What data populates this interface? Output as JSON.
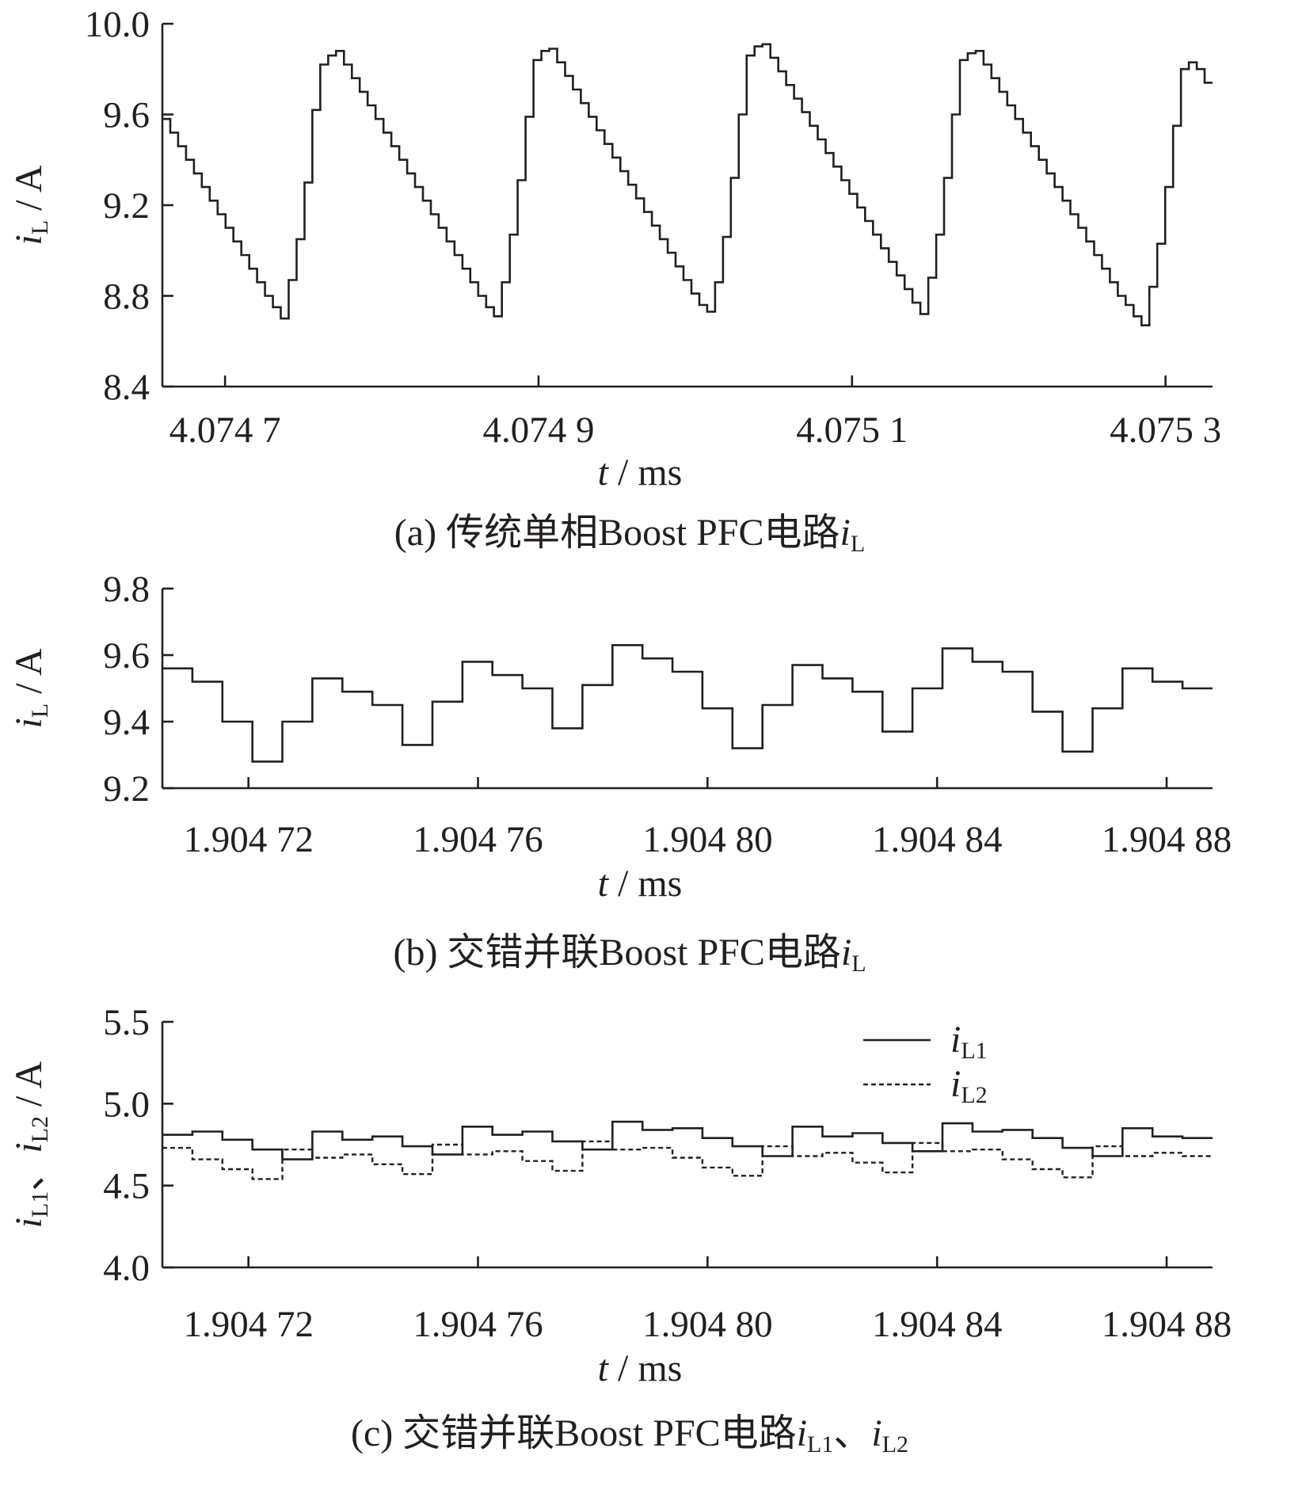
{
  "chart_data": [
    {
      "type": "line",
      "caption_prefix": "(a)",
      "caption_text": "传统单相Boost PFC电路",
      "caption_var": "i",
      "caption_sub": "L",
      "ylabel_var": "i",
      "ylabel_sub": "L",
      "ylabel_unit": " / A",
      "xlabel_var": "t",
      "xlabel_unit": " / ms",
      "ylim": [
        8.4,
        10.0
      ],
      "yticks": [
        "8.4",
        "8.8",
        "9.2",
        "9.6",
        "10.0"
      ],
      "xlim": [
        4.07466,
        4.07533
      ],
      "xticks": [
        {
          "value": 4.0747,
          "label": "4.074 7"
        },
        {
          "value": 4.0749,
          "label": "4.074 9"
        },
        {
          "value": 4.0751,
          "label": "4.075 1"
        },
        {
          "value": 4.0753,
          "label": "4.075 3"
        }
      ],
      "grid": false,
      "series": [
        {
          "style": "step",
          "values": [
            9.58,
            9.52,
            9.46,
            9.4,
            9.34,
            9.28,
            9.22,
            9.16,
            9.1,
            9.04,
            8.98,
            8.92,
            8.86,
            8.8,
            8.75,
            8.7,
            8.87,
            9.05,
            9.3,
            9.62,
            9.82,
            9.86,
            9.88,
            9.82,
            9.76,
            9.7,
            9.64,
            9.58,
            9.52,
            9.46,
            9.4,
            9.34,
            9.28,
            9.22,
            9.16,
            9.1,
            9.04,
            8.98,
            8.92,
            8.86,
            8.8,
            8.75,
            8.71,
            8.86,
            9.07,
            9.31,
            9.59,
            9.84,
            9.88,
            9.89,
            9.83,
            9.77,
            9.71,
            9.65,
            9.59,
            9.53,
            9.47,
            9.41,
            9.35,
            9.29,
            9.23,
            9.17,
            9.11,
            9.05,
            8.99,
            8.93,
            8.87,
            8.81,
            8.76,
            8.73,
            8.86,
            9.06,
            9.32,
            9.6,
            9.86,
            9.9,
            9.91,
            9.85,
            9.79,
            9.73,
            9.67,
            9.61,
            9.55,
            9.49,
            9.43,
            9.37,
            9.31,
            9.25,
            9.19,
            9.13,
            9.07,
            9.01,
            8.95,
            8.89,
            8.83,
            8.77,
            8.72,
            8.88,
            9.07,
            9.32,
            9.6,
            9.84,
            9.87,
            9.88,
            9.82,
            9.76,
            9.7,
            9.64,
            9.58,
            9.52,
            9.46,
            9.4,
            9.34,
            9.28,
            9.22,
            9.16,
            9.1,
            9.04,
            8.98,
            8.92,
            8.86,
            8.8,
            8.76,
            8.71,
            8.67,
            8.84,
            9.03,
            9.28,
            9.55,
            9.8,
            9.83,
            9.8,
            9.74
          ]
        }
      ]
    },
    {
      "type": "line",
      "caption_prefix": "(b)",
      "caption_text": "交错并联Boost PFC电路",
      "caption_var": "i",
      "caption_sub": "L",
      "ylabel_var": "i",
      "ylabel_sub": "L",
      "ylabel_unit": " / A",
      "xlabel_var": "t",
      "xlabel_unit": " / ms",
      "ylim": [
        9.2,
        9.8
      ],
      "yticks": [
        "9.2",
        "9.4",
        "9.6",
        "9.8"
      ],
      "xlim": [
        1.904705,
        1.904888
      ],
      "xticks": [
        {
          "value": 1.90472,
          "label": "1.904 72"
        },
        {
          "value": 1.90476,
          "label": "1.904 76"
        },
        {
          "value": 1.9048,
          "label": "1.904 80"
        },
        {
          "value": 1.90484,
          "label": "1.904 84"
        },
        {
          "value": 1.90488,
          "label": "1.904 88"
        }
      ],
      "grid": false,
      "series": [
        {
          "style": "step",
          "values": [
            9.56,
            9.52,
            9.4,
            9.28,
            9.4,
            9.53,
            9.49,
            9.45,
            9.33,
            9.46,
            9.58,
            9.54,
            9.5,
            9.38,
            9.51,
            9.63,
            9.59,
            9.55,
            9.44,
            9.32,
            9.45,
            9.57,
            9.53,
            9.49,
            9.37,
            9.5,
            9.62,
            9.58,
            9.55,
            9.43,
            9.31,
            9.44,
            9.56,
            9.52,
            9.5
          ]
        }
      ]
    },
    {
      "type": "line",
      "caption_prefix": "(c)",
      "caption_text": "交错并联Boost PFC电路",
      "caption_var": "i",
      "caption_sub": "L1",
      "caption_sep": "、",
      "caption_var2": "i",
      "caption_sub2": "L2",
      "ylabel_var": "i",
      "ylabel_sub": "L1",
      "ylabel_sep": "、",
      "ylabel_var2": "i",
      "ylabel_sub2": "L2",
      "ylabel_unit": " / A",
      "xlabel_var": "t",
      "xlabel_unit": " / ms",
      "ylim": [
        4.0,
        5.5
      ],
      "yticks": [
        "4.0",
        "4.5",
        "5.0",
        "5.5"
      ],
      "xlim": [
        1.904705,
        1.904888
      ],
      "xticks": [
        {
          "value": 1.90472,
          "label": "1.904 72"
        },
        {
          "value": 1.90476,
          "label": "1.904 76"
        },
        {
          "value": 1.9048,
          "label": "1.904 80"
        },
        {
          "value": 1.90484,
          "label": "1.904 84"
        },
        {
          "value": 1.90488,
          "label": "1.904 88"
        }
      ],
      "grid": false,
      "legend_position": "top-right",
      "series": [
        {
          "name_var": "i",
          "name_sub": "L1",
          "style": "solid",
          "values": [
            4.81,
            4.83,
            4.78,
            4.72,
            4.66,
            4.83,
            4.78,
            4.8,
            4.74,
            4.69,
            4.86,
            4.81,
            4.83,
            4.77,
            4.72,
            4.89,
            4.84,
            4.85,
            4.79,
            4.74,
            4.68,
            4.86,
            4.8,
            4.82,
            4.76,
            4.71,
            4.88,
            4.83,
            4.84,
            4.79,
            4.73,
            4.68,
            4.85,
            4.8,
            4.79
          ]
        },
        {
          "name_var": "i",
          "name_sub": "L2",
          "style": "dashed",
          "values": [
            4.73,
            4.66,
            4.6,
            4.54,
            4.72,
            4.67,
            4.69,
            4.63,
            4.57,
            4.75,
            4.69,
            4.71,
            4.65,
            4.59,
            4.77,
            4.72,
            4.73,
            4.67,
            4.61,
            4.56,
            4.74,
            4.68,
            4.7,
            4.64,
            4.58,
            4.76,
            4.71,
            4.72,
            4.66,
            4.6,
            4.55,
            4.74,
            4.68,
            4.7,
            4.68
          ]
        }
      ]
    }
  ]
}
